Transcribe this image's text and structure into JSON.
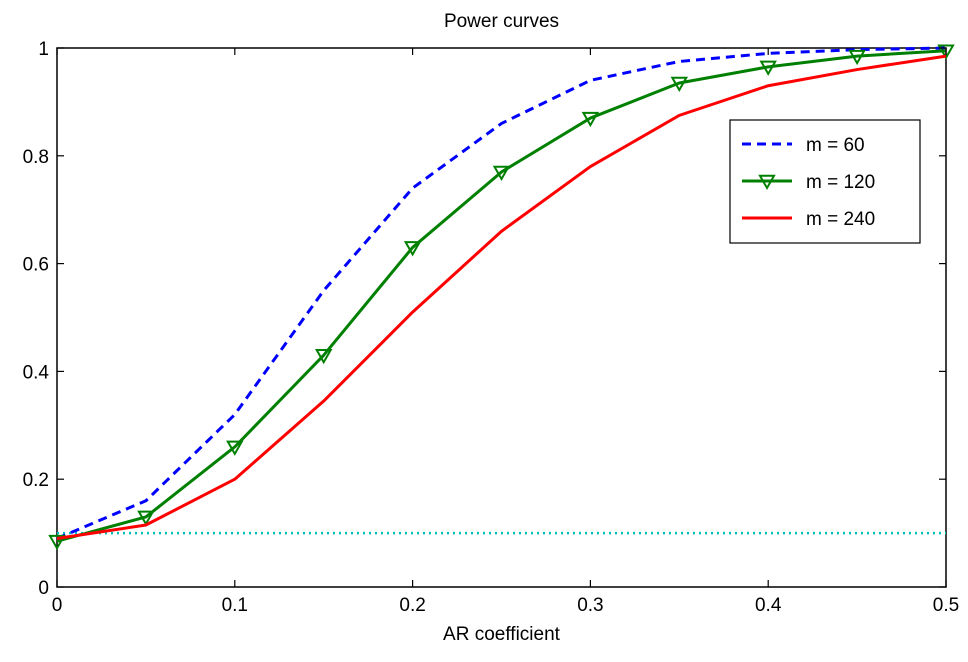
{
  "chart_data": {
    "type": "line",
    "title": "Power curves",
    "xlabel": "AR coefficient",
    "ylabel": "",
    "xlim": [
      0,
      0.5
    ],
    "ylim": [
      0,
      1
    ],
    "xticks": [
      0,
      0.1,
      0.2,
      0.3,
      0.4,
      0.5
    ],
    "xtick_labels": [
      "0",
      "0.1",
      "0.2",
      "0.3",
      "0.4",
      "0.5"
    ],
    "yticks": [
      0,
      0.2,
      0.4,
      0.6,
      0.8,
      1
    ],
    "ytick_labels": [
      "0",
      "0.2",
      "0.4",
      "0.6",
      "0.8",
      "1"
    ],
    "grid": false,
    "legend_position": "top-right",
    "series": [
      {
        "name": "m = 60",
        "color": "#0000ff",
        "style": "dashed",
        "marker": "none",
        "x": [
          0,
          0.05,
          0.1,
          0.15,
          0.2,
          0.25,
          0.3,
          0.35,
          0.4,
          0.45,
          0.5
        ],
        "y": [
          0.09,
          0.16,
          0.32,
          0.55,
          0.74,
          0.86,
          0.94,
          0.975,
          0.99,
          0.997,
          1.0
        ]
      },
      {
        "name": "m = 120",
        "color": "#008000",
        "style": "solid",
        "marker": "triangle-down",
        "x": [
          0,
          0.05,
          0.1,
          0.15,
          0.2,
          0.25,
          0.3,
          0.35,
          0.4,
          0.45,
          0.5
        ],
        "y": [
          0.085,
          0.13,
          0.26,
          0.43,
          0.63,
          0.77,
          0.87,
          0.935,
          0.965,
          0.985,
          0.995
        ]
      },
      {
        "name": "m = 240",
        "color": "#ff0000",
        "style": "solid",
        "marker": "none",
        "x": [
          0,
          0.05,
          0.1,
          0.15,
          0.2,
          0.25,
          0.3,
          0.35,
          0.4,
          0.45,
          0.5
        ],
        "y": [
          0.09,
          0.115,
          0.2,
          0.345,
          0.51,
          0.66,
          0.78,
          0.875,
          0.93,
          0.96,
          0.985
        ]
      }
    ],
    "reference_line": {
      "y": 0.1,
      "color": "#00bfbf",
      "style": "dotted"
    }
  }
}
